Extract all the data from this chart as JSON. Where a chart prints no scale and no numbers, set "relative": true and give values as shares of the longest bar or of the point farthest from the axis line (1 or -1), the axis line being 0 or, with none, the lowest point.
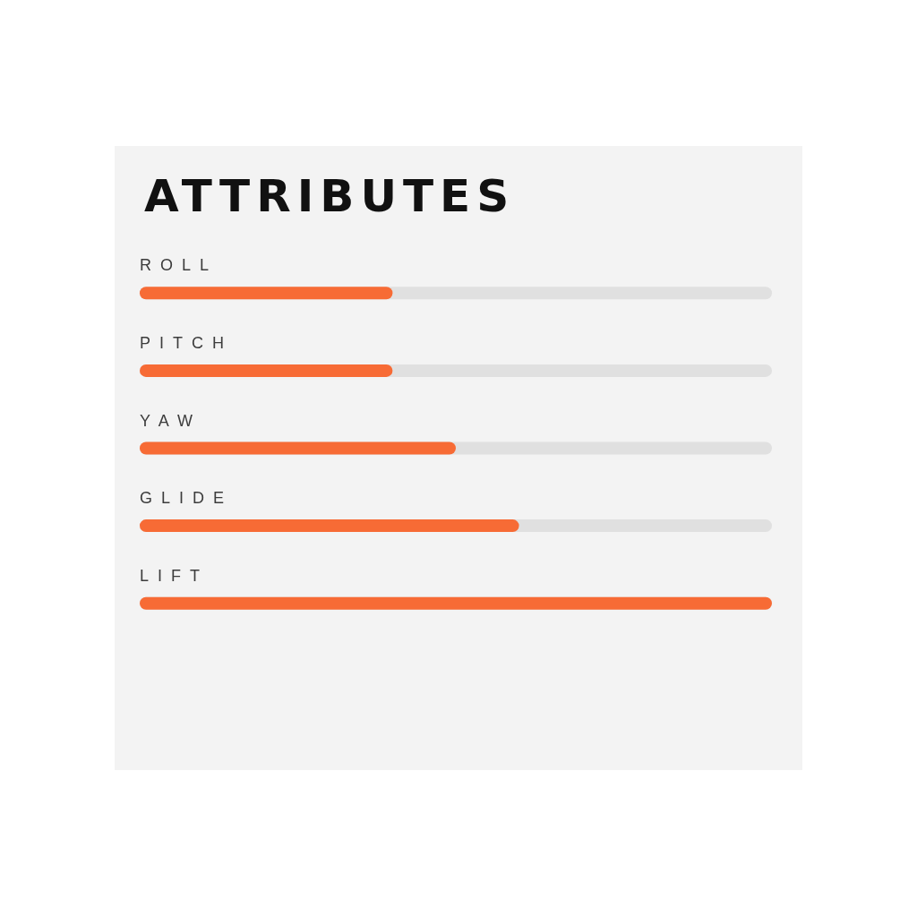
{
  "chart_data": {
    "type": "bar",
    "orientation": "horizontal",
    "relative": true,
    "title": "ATTRIBUTES",
    "categories": [
      "ROLL",
      "PITCH",
      "YAW",
      "GLIDE",
      "LIFT"
    ],
    "values": [
      0.4,
      0.4,
      0.5,
      0.6,
      1
    ],
    "color": "#f76b35"
  }
}
